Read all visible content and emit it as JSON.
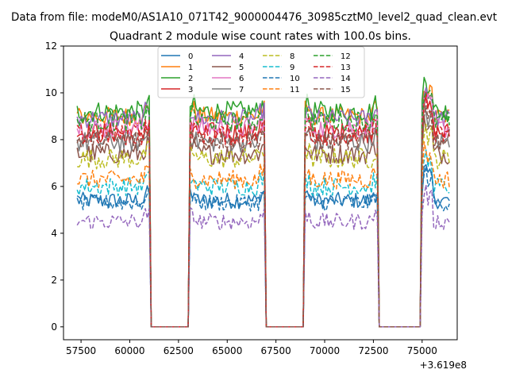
{
  "chart_data": {
    "type": "line",
    "suptitle": "Data from file: modeM0/AS1A10_071T42_9000004476_30985cztM0_level2_quad_clean.evt",
    "title": "Quadrant 2 module wise count rates with 100.0s bins.",
    "xlabel": "",
    "ylabel": "",
    "x_offset_label": "+3.619e8",
    "xlim": [
      56600,
      76800
    ],
    "ylim": [
      -0.55,
      12
    ],
    "xticks": [
      57500,
      60000,
      62500,
      65000,
      67500,
      70000,
      72500,
      75000
    ],
    "yticks": [
      0,
      2,
      4,
      6,
      8,
      10,
      12
    ],
    "grid": false,
    "legend_position": "top-center",
    "legend_columns": 4,
    "gaps": [
      [
        61000,
        63100
      ],
      [
        66900,
        69000
      ],
      [
        72700,
        75000
      ]
    ],
    "x_start": 57300,
    "x_end": 76400,
    "bin": 100,
    "series": [
      {
        "name": "0",
        "mean": 5.4,
        "noise": 0.35,
        "color": "#1f77b4",
        "dash": "solid"
      },
      {
        "name": "1",
        "mean": 9.0,
        "noise": 0.4,
        "color": "#ff7f0e",
        "dash": "solid"
      },
      {
        "name": "2",
        "mean": 9.2,
        "noise": 0.45,
        "color": "#2ca02c",
        "dash": "solid"
      },
      {
        "name": "3",
        "mean": 8.3,
        "noise": 0.45,
        "color": "#d62728",
        "dash": "solid"
      },
      {
        "name": "4",
        "mean": 8.9,
        "noise": 0.4,
        "color": "#9467bd",
        "dash": "solid"
      },
      {
        "name": "5",
        "mean": 7.4,
        "noise": 0.45,
        "color": "#8c564b",
        "dash": "solid"
      },
      {
        "name": "6",
        "mean": 8.5,
        "noise": 0.45,
        "color": "#e377c2",
        "dash": "solid"
      },
      {
        "name": "7",
        "mean": 7.9,
        "noise": 0.45,
        "color": "#7f7f7f",
        "dash": "solid"
      },
      {
        "name": "8",
        "mean": 7.2,
        "noise": 0.45,
        "color": "#bcbd22",
        "dash": "dashed"
      },
      {
        "name": "9",
        "mean": 6.0,
        "noise": 0.4,
        "color": "#17becf",
        "dash": "dashed"
      },
      {
        "name": "10",
        "mean": 5.3,
        "noise": 0.35,
        "color": "#1f77b4",
        "dash": "dashed"
      },
      {
        "name": "11",
        "mean": 6.3,
        "noise": 0.4,
        "color": "#ff7f0e",
        "dash": "dashed"
      },
      {
        "name": "12",
        "mean": 8.8,
        "noise": 0.45,
        "color": "#2ca02c",
        "dash": "dashed"
      },
      {
        "name": "13",
        "mean": 8.2,
        "noise": 0.45,
        "color": "#d62728",
        "dash": "dashed"
      },
      {
        "name": "14",
        "mean": 4.5,
        "noise": 0.35,
        "color": "#9467bd",
        "dash": "dashed"
      },
      {
        "name": "15",
        "mean": 8.0,
        "noise": 0.45,
        "color": "#8c564b",
        "dash": "dashed"
      }
    ]
  }
}
